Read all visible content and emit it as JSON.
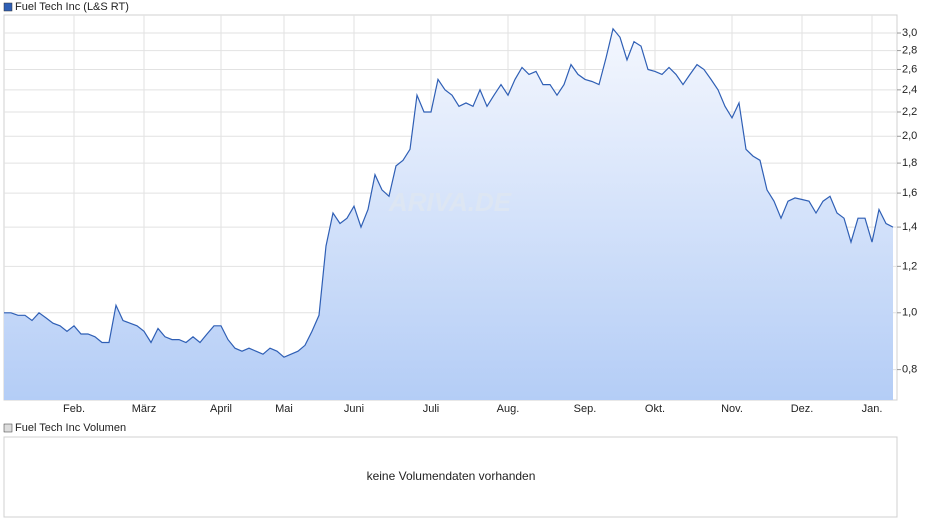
{
  "chart_data": {
    "type": "area",
    "log_scale": true,
    "grid": true,
    "legend_position": "top-left",
    "watermark": "ARIVA.DE",
    "ylim": [
      0.71,
      3.22
    ],
    "yticks": [
      {
        "value": 0.8,
        "label": "0,8"
      },
      {
        "value": 1.0,
        "label": "1,0"
      },
      {
        "value": 1.2,
        "label": "1,2"
      },
      {
        "value": 1.4,
        "label": "1,4"
      },
      {
        "value": 1.6,
        "label": "1,6"
      },
      {
        "value": 1.8,
        "label": "1,8"
      },
      {
        "value": 2.0,
        "label": "2,0"
      },
      {
        "value": 2.2,
        "label": "2,2"
      },
      {
        "value": 2.4,
        "label": "2,4"
      },
      {
        "value": 2.6,
        "label": "2,6"
      },
      {
        "value": 2.8,
        "label": "2,8"
      },
      {
        "value": 3.0,
        "label": "3,0"
      }
    ],
    "categories": [
      null,
      null,
      null,
      null,
      null,
      null,
      null,
      null,
      null,
      null,
      "Feb.",
      null,
      null,
      null,
      null,
      null,
      null,
      null,
      null,
      null,
      "März",
      null,
      null,
      null,
      null,
      null,
      null,
      null,
      null,
      null,
      null,
      "April",
      null,
      null,
      null,
      null,
      null,
      null,
      null,
      null,
      "Mai",
      null,
      null,
      null,
      null,
      null,
      null,
      null,
      null,
      null,
      "Juni",
      null,
      null,
      null,
      null,
      null,
      null,
      null,
      null,
      null,
      null,
      "Juli",
      null,
      null,
      null,
      null,
      null,
      null,
      null,
      null,
      null,
      null,
      "Aug.",
      null,
      null,
      null,
      null,
      null,
      null,
      null,
      null,
      null,
      null,
      "Sep.",
      null,
      null,
      null,
      null,
      null,
      null,
      null,
      null,
      null,
      "Okt.",
      null,
      null,
      null,
      null,
      null,
      null,
      null,
      null,
      null,
      null,
      "Nov.",
      null,
      null,
      null,
      null,
      null,
      null,
      null,
      null,
      null,
      "Dez.",
      null,
      null,
      null,
      null,
      null,
      null,
      null,
      null,
      null,
      "Jan.",
      null,
      null,
      null
    ],
    "series": [
      {
        "name": "Fuel Tech Inc (L&S RT)",
        "color": "#2f5fb5",
        "values": [
          1.0,
          1.0,
          0.99,
          0.99,
          0.97,
          1.0,
          0.98,
          0.96,
          0.95,
          0.93,
          0.95,
          0.92,
          0.92,
          0.91,
          0.89,
          0.89,
          1.03,
          0.97,
          0.96,
          0.95,
          0.93,
          0.89,
          0.94,
          0.91,
          0.9,
          0.9,
          0.89,
          0.91,
          0.89,
          0.92,
          0.95,
          0.95,
          0.9,
          0.87,
          0.86,
          0.87,
          0.86,
          0.85,
          0.87,
          0.86,
          0.84,
          0.85,
          0.86,
          0.88,
          0.93,
          0.99,
          1.3,
          1.48,
          1.42,
          1.45,
          1.52,
          1.4,
          1.5,
          1.72,
          1.62,
          1.58,
          1.78,
          1.82,
          1.9,
          2.35,
          2.2,
          2.2,
          2.5,
          2.4,
          2.35,
          2.25,
          2.28,
          2.25,
          2.4,
          2.25,
          2.35,
          2.45,
          2.35,
          2.5,
          2.62,
          2.55,
          2.58,
          2.45,
          2.45,
          2.35,
          2.45,
          2.65,
          2.55,
          2.5,
          2.48,
          2.45,
          2.72,
          3.05,
          2.95,
          2.7,
          2.9,
          2.85,
          2.6,
          2.58,
          2.55,
          2.62,
          2.55,
          2.45,
          2.55,
          2.65,
          2.6,
          2.5,
          2.4,
          2.25,
          2.15,
          2.28,
          1.9,
          1.85,
          1.82,
          1.62,
          1.55,
          1.45,
          1.55,
          1.57,
          1.56,
          1.55,
          1.48,
          1.55,
          1.58,
          1.48,
          1.45,
          1.32,
          1.45,
          1.45,
          1.32,
          1.5,
          1.42,
          1.4
        ]
      }
    ]
  },
  "volume_panel": {
    "legend": "Fuel Tech Inc Volumen",
    "message": "keine Volumendaten vorhanden"
  }
}
